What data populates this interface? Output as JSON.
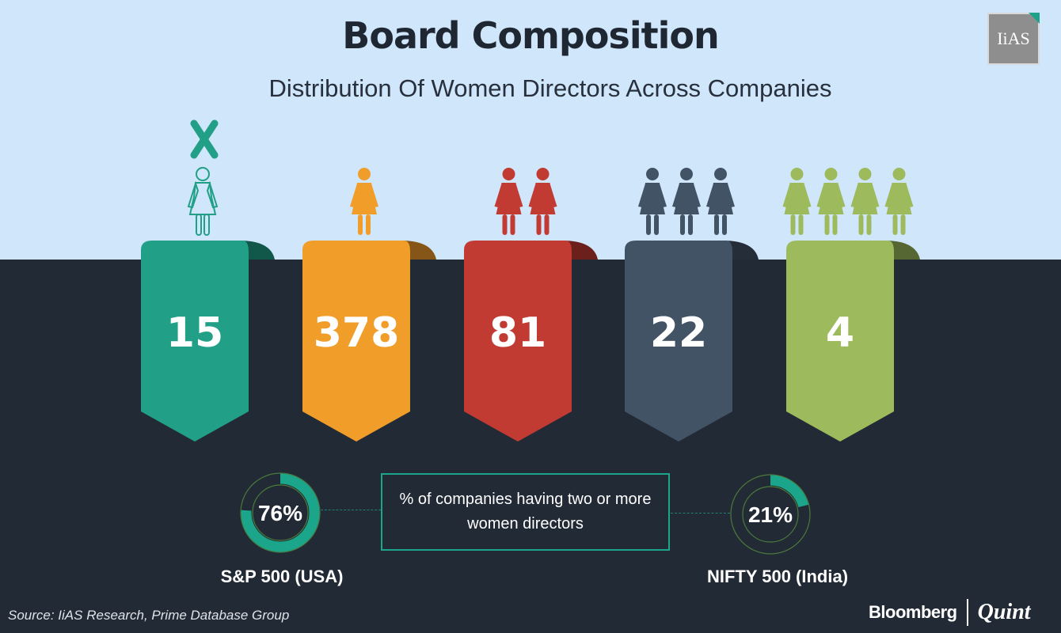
{
  "title": "Board Composition",
  "subtitle": "Distribution Of Women Directors Across Companies",
  "logo_text": "IiAS",
  "colors": {
    "sky": "#cfe6fb",
    "ground": "#222a36",
    "accent": "#1ba58a"
  },
  "chart_data": {
    "type": "bar",
    "categories": [
      "0",
      "1",
      "2",
      "3",
      "4"
    ],
    "values": [
      15,
      378,
      81,
      22,
      4
    ],
    "value_labels": [
      "15",
      "378",
      "81",
      "22",
      "4"
    ],
    "colors": [
      "#21a087",
      "#f19d2a",
      "#c23b32",
      "#435366",
      "#9dbb5c"
    ],
    "icons": [
      "no-woman-icon",
      "woman-icon",
      "woman-icon",
      "woman-icon",
      "woman-icon"
    ],
    "title": "Board Composition",
    "subtitle": "Distribution Of Women Directors Across Companies"
  },
  "comparison": {
    "note": "% of companies having two or more women directors",
    "usa": {
      "label": "S&P 500 (USA)",
      "value": 76,
      "display": "76%"
    },
    "india": {
      "label": "NIFTY 500 (India)",
      "value": 21,
      "display": "21%"
    }
  },
  "source": "Source: IiAS Research, Prime Database Group",
  "brand": {
    "left": "Bloomberg",
    "right": "Quint"
  }
}
